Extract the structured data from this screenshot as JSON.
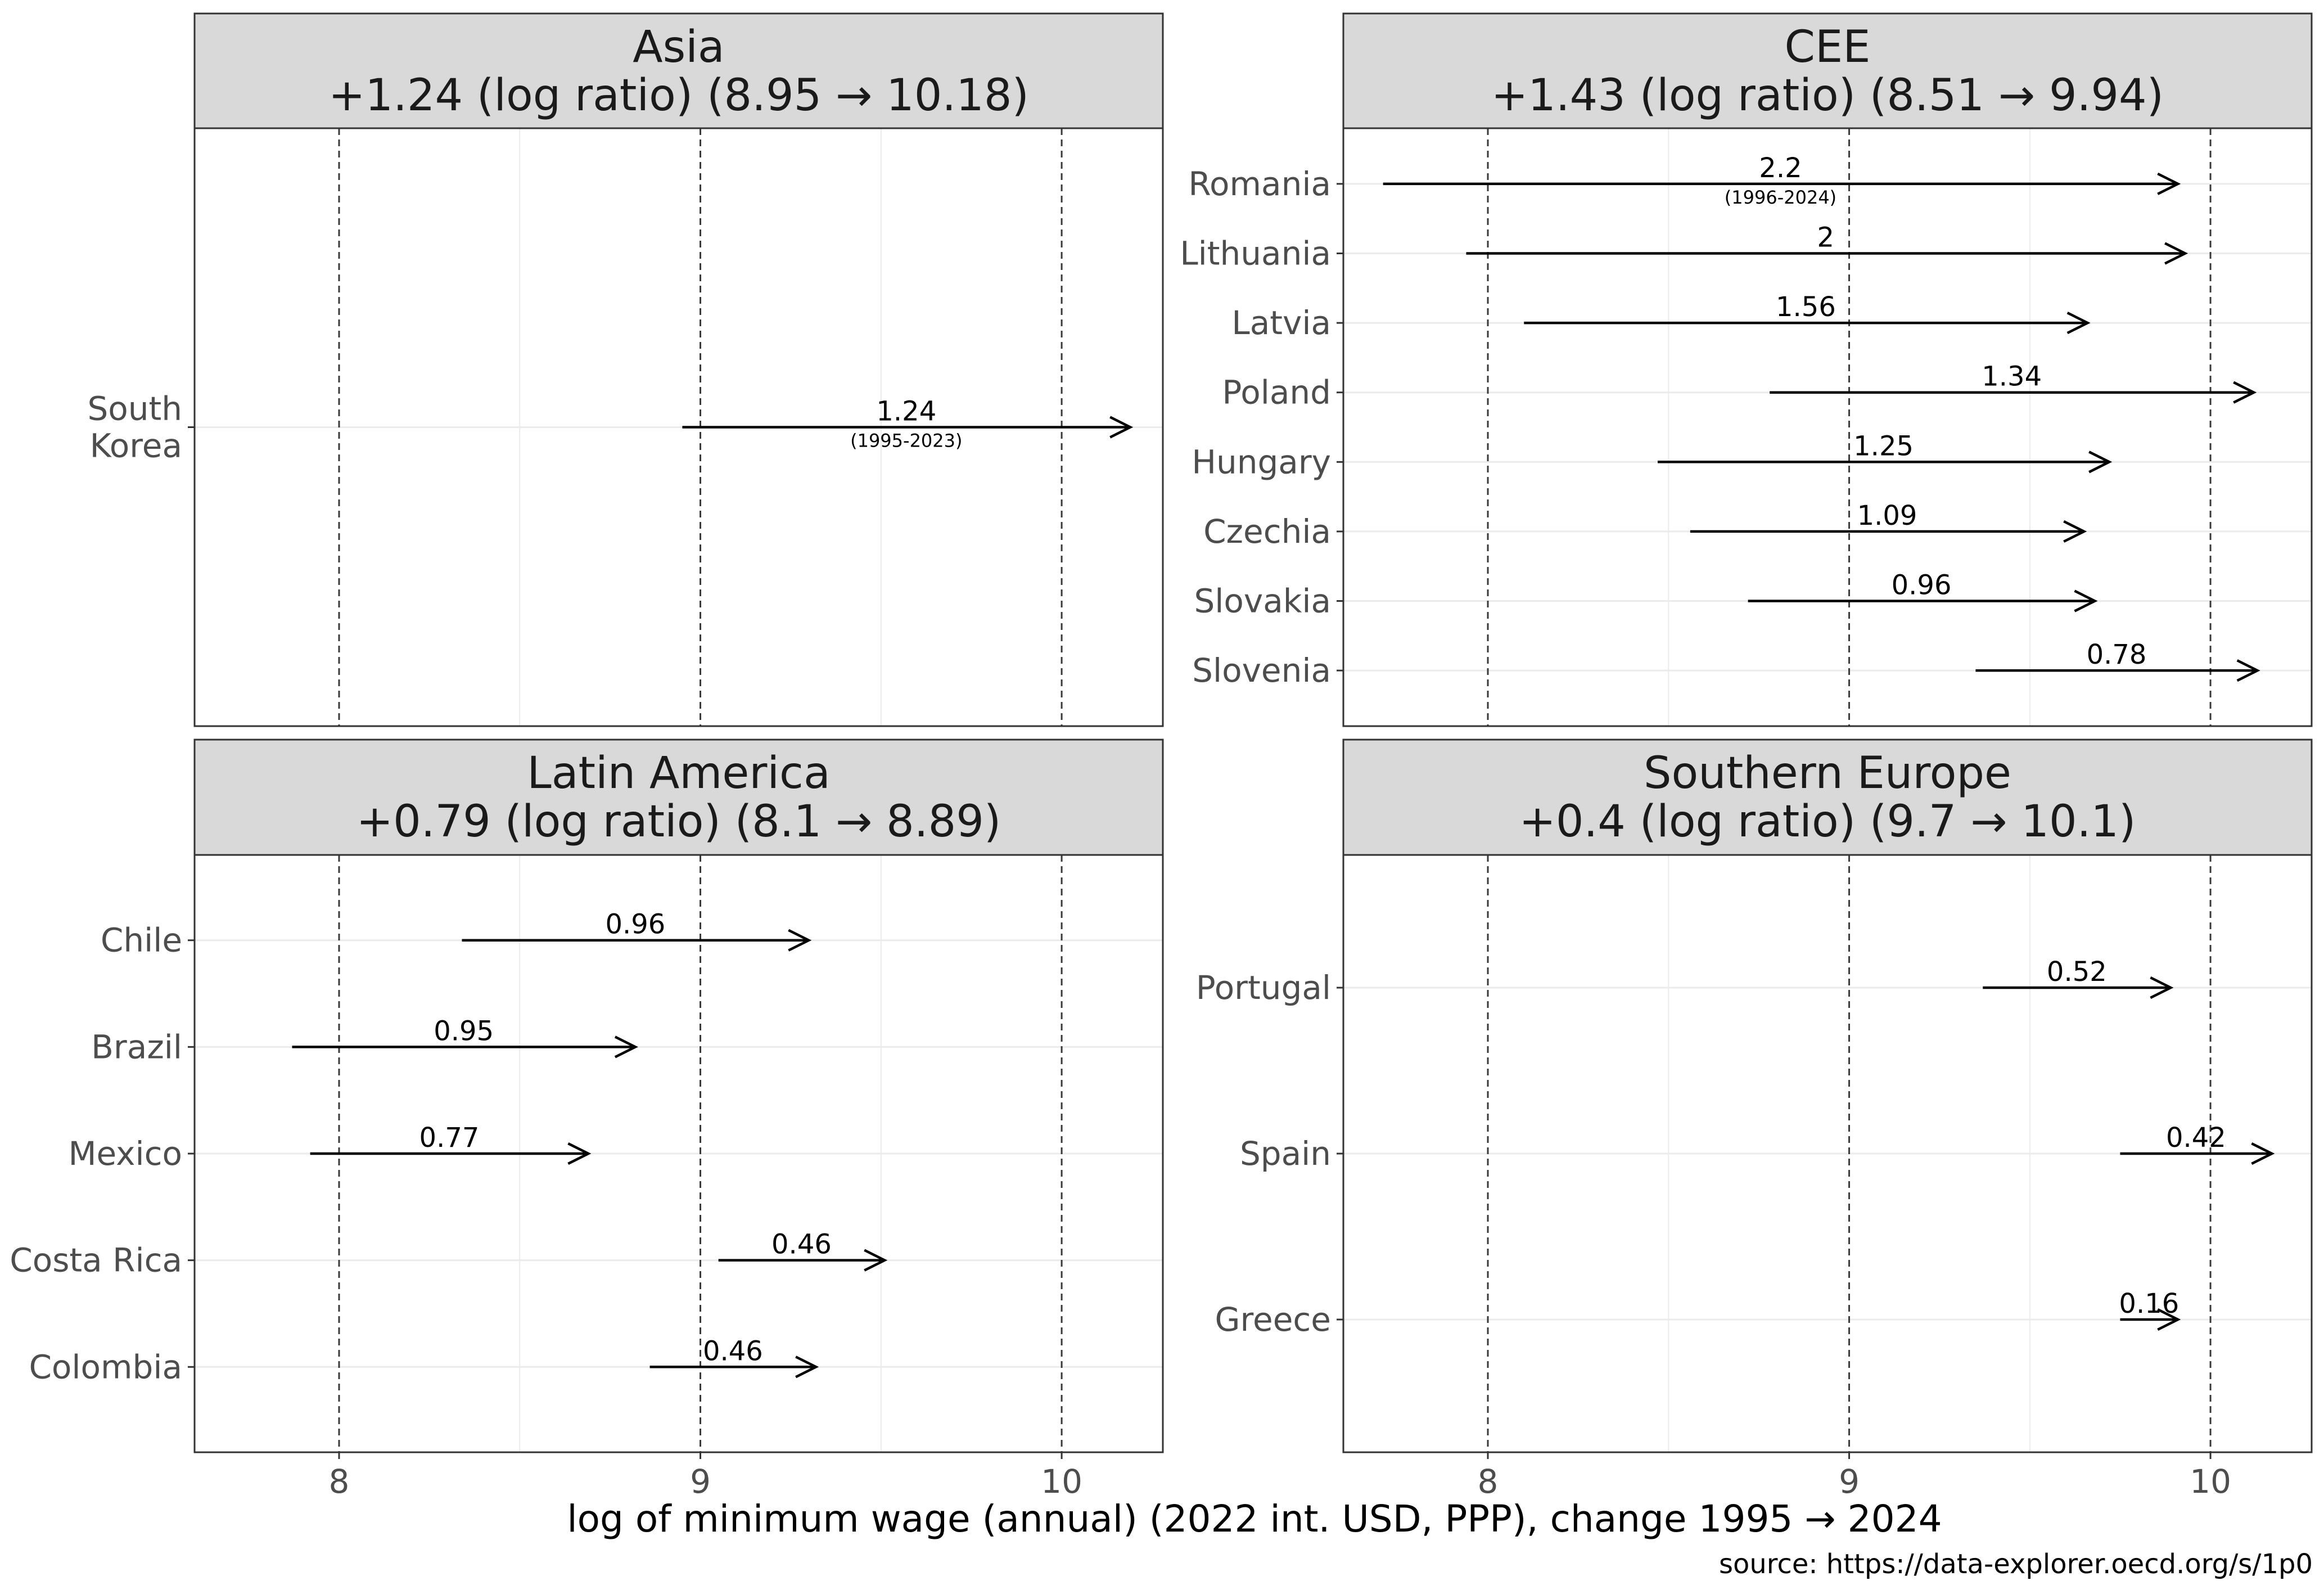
{
  "chart_data": {
    "type": "arrow-dumbbell",
    "title": "",
    "xlabel": "log of minimum wage (annual) (2022 int. USD, PPP), change 1995 → 2024",
    "caption": "source: https://data-explorer.oecd.org/s/1p0",
    "xlim": [
      7.6,
      10.28
    ],
    "x_ticks": [
      8,
      9,
      10
    ],
    "x_tick_labels": [
      "8",
      "9",
      "10"
    ],
    "reference_lines": [
      8,
      9,
      10
    ],
    "panels": [
      {
        "name": "Asia",
        "summary": "+1.24 (log ratio) (8.95 → 10.18)",
        "rows": [
          {
            "country": "South Korea",
            "country_lines": [
              "South",
              "Korea"
            ],
            "start": 8.95,
            "end": 10.19,
            "label": "1.24",
            "sublabel": "(1995-2023)"
          }
        ]
      },
      {
        "name": "CEE",
        "summary": "+1.43 (log ratio) (8.51 → 9.94)",
        "rows": [
          {
            "country": "Romania",
            "country_lines": [
              "Romania"
            ],
            "start": 7.71,
            "end": 9.91,
            "label": "2.2",
            "sublabel": "(1996-2024)"
          },
          {
            "country": "Lithuania",
            "country_lines": [
              "Lithuania"
            ],
            "start": 7.94,
            "end": 9.93,
            "label": "2",
            "sublabel": ""
          },
          {
            "country": "Latvia",
            "country_lines": [
              "Latvia"
            ],
            "start": 8.1,
            "end": 9.66,
            "label": "1.56",
            "sublabel": ""
          },
          {
            "country": "Poland",
            "country_lines": [
              "Poland"
            ],
            "start": 8.78,
            "end": 10.12,
            "label": "1.34",
            "sublabel": ""
          },
          {
            "country": "Hungary",
            "country_lines": [
              "Hungary"
            ],
            "start": 8.47,
            "end": 9.72,
            "label": "1.25",
            "sublabel": ""
          },
          {
            "country": "Czechia",
            "country_lines": [
              "Czechia"
            ],
            "start": 8.56,
            "end": 9.65,
            "label": "1.09",
            "sublabel": ""
          },
          {
            "country": "Slovakia",
            "country_lines": [
              "Slovakia"
            ],
            "start": 8.72,
            "end": 9.68,
            "label": "0.96",
            "sublabel": ""
          },
          {
            "country": "Slovenia",
            "country_lines": [
              "Slovenia"
            ],
            "start": 9.35,
            "end": 10.13,
            "label": "0.78",
            "sublabel": ""
          }
        ]
      },
      {
        "name": "Latin America",
        "summary": "+0.79 (log ratio) (8.1 → 8.89)",
        "rows": [
          {
            "country": "Chile",
            "country_lines": [
              "Chile"
            ],
            "start": 8.34,
            "end": 9.3,
            "label": "0.96",
            "sublabel": ""
          },
          {
            "country": "Brazil",
            "country_lines": [
              "Brazil"
            ],
            "start": 7.87,
            "end": 8.82,
            "label": "0.95",
            "sublabel": ""
          },
          {
            "country": "Mexico",
            "country_lines": [
              "Mexico"
            ],
            "start": 7.92,
            "end": 8.69,
            "label": "0.77",
            "sublabel": ""
          },
          {
            "country": "Costa Rica",
            "country_lines": [
              "Costa Rica"
            ],
            "start": 9.05,
            "end": 9.51,
            "label": "0.46",
            "sublabel": ""
          },
          {
            "country": "Colombia",
            "country_lines": [
              "Colombia"
            ],
            "start": 8.86,
            "end": 9.32,
            "label": "0.46",
            "sublabel": ""
          }
        ]
      },
      {
        "name": "Southern Europe",
        "summary": "+0.4 (log ratio) (9.7 → 10.1)",
        "rows": [
          {
            "country": "Portugal",
            "country_lines": [
              "Portugal"
            ],
            "start": 9.37,
            "end": 9.89,
            "label": "0.52",
            "sublabel": ""
          },
          {
            "country": "Spain",
            "country_lines": [
              "Spain"
            ],
            "start": 9.75,
            "end": 10.17,
            "label": "0.42",
            "sublabel": ""
          },
          {
            "country": "Greece",
            "country_lines": [
              "Greece"
            ],
            "start": 9.75,
            "end": 9.91,
            "label": "0.16",
            "sublabel": ""
          }
        ]
      }
    ]
  }
}
